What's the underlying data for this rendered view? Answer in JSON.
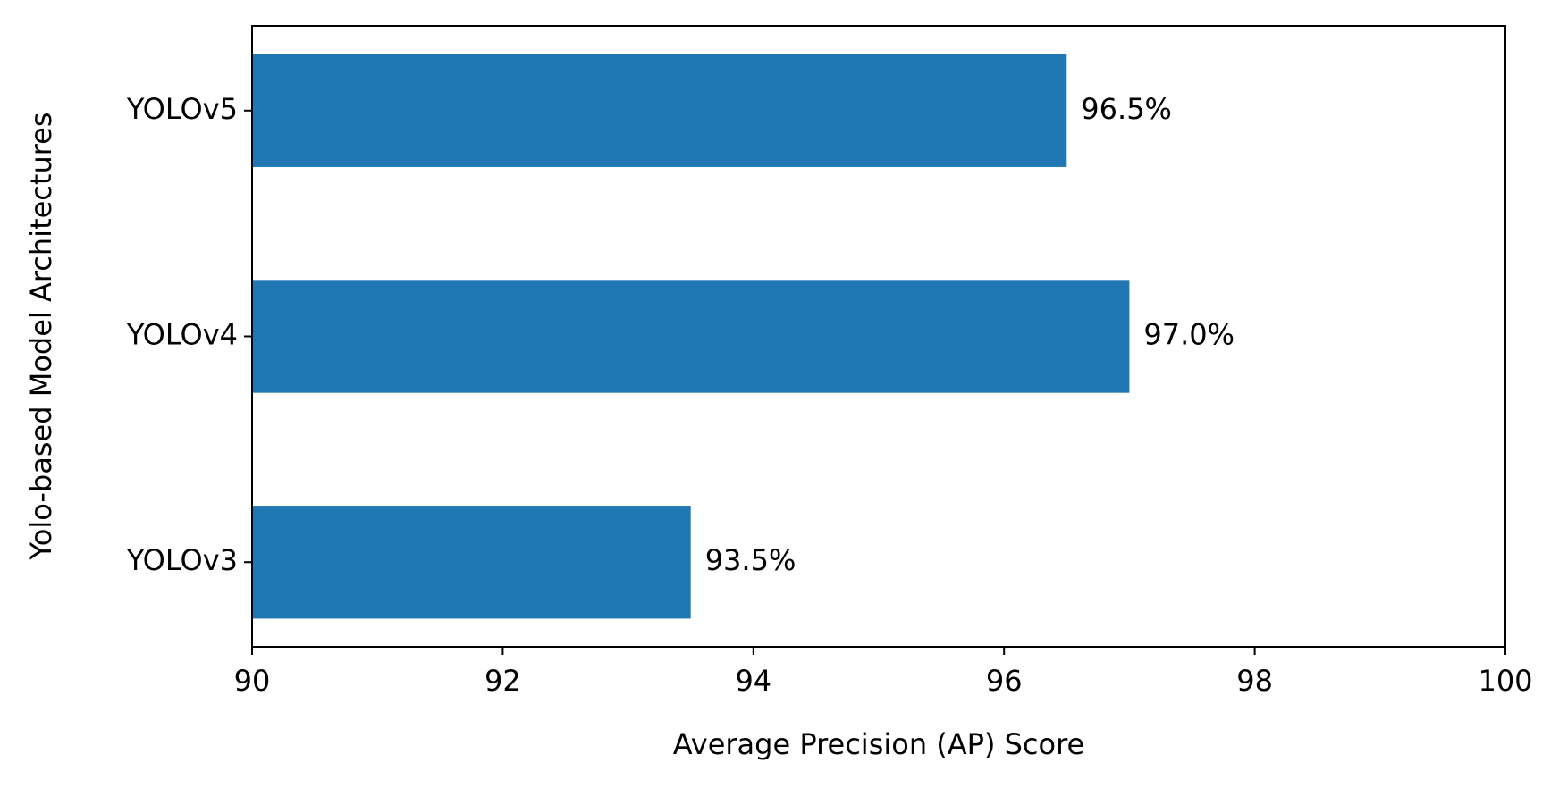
{
  "chart_data": {
    "type": "barh",
    "xlabel": "Average Precision (AP) Score",
    "ylabel": "Yolo-based Model Architectures",
    "categories": [
      "YOLOv3",
      "YOLOv4",
      "YOLOv5"
    ],
    "values": [
      93.5,
      97.0,
      96.5
    ],
    "value_labels": [
      "93.5%",
      "97.0%",
      "96.5%"
    ],
    "color": "#1f77b4",
    "xlim": [
      90,
      100
    ],
    "xticks": [
      90,
      92,
      94,
      96,
      98,
      100
    ],
    "grid": false
  }
}
